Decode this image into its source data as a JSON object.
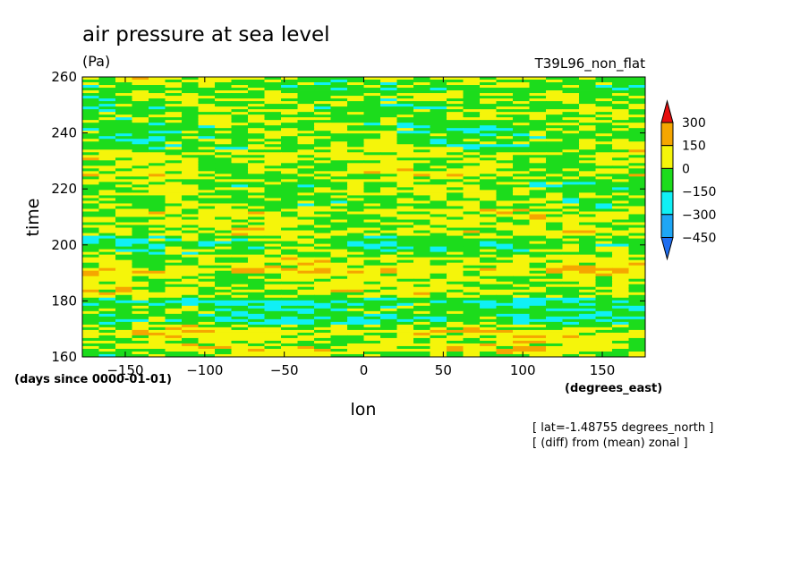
{
  "header": {
    "title": "air pressure at sea level",
    "units": "(Pa)",
    "experiment": "T39L96_non_flat"
  },
  "footer": {
    "lat_note": "[ lat=-1.48755 degrees_north ]",
    "diff_note": "[ (diff) from (mean) zonal ]"
  },
  "colors": {
    "level_fills": [
      "#1f6ef0",
      "#1ea6f5",
      "#10f0f5",
      "#1cdc1c",
      "#f5f50a",
      "#f5a600",
      "#e60f0f"
    ]
  },
  "chart_data": {
    "type": "heatmap",
    "title": "air pressure at sea level",
    "xlabel": "lon",
    "ylabel": "time",
    "x_units": "(degrees_east)",
    "y_units": "(days since 0000-01-01)",
    "xlim": [
      -177,
      177
    ],
    "ylim": [
      160,
      260
    ],
    "xticks": [
      -150,
      -100,
      -50,
      0,
      50,
      100,
      150
    ],
    "yticks": [
      160,
      180,
      200,
      220,
      240,
      260
    ],
    "colorbar": {
      "levels": [
        -450,
        -300,
        -150,
        0,
        150,
        300
      ],
      "labels": [
        "300",
        "150",
        "0",
        "-150",
        "-300",
        "-450"
      ],
      "extend": "both"
    },
    "field_description": "noisy zonal anomaly with bands of positive (yellow/orange/red) and negative (green/cyan/blue) values; blue-cyan streaks near time 175-180, 200 and 240-255"
  }
}
